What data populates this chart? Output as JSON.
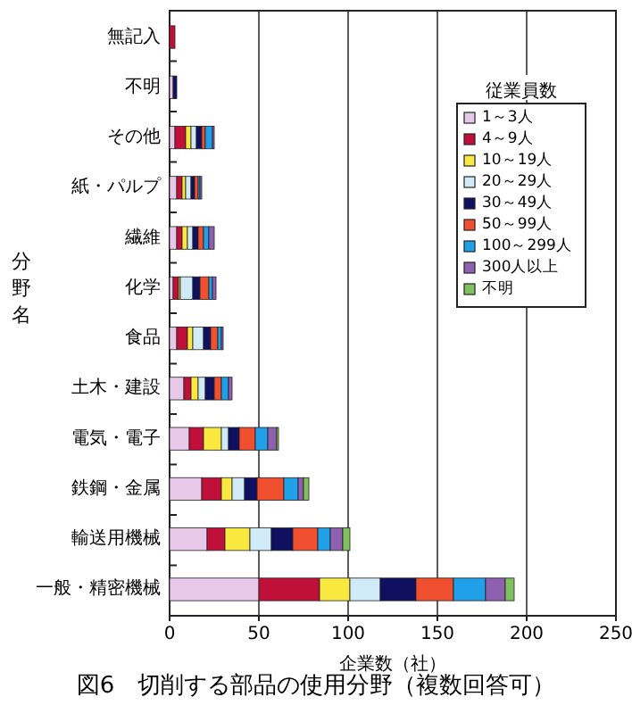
{
  "chart_data": {
    "type": "bar",
    "orientation": "horizontal",
    "stacked": true,
    "title": "図6　切削する部品の使用分野（複数回答可）",
    "xlabel": "企業数（社）",
    "ylabel": "分野名",
    "legend_title": "従業員数",
    "legend": "top right",
    "grid": "x",
    "categories": [
      "無記入",
      "不明",
      "その他",
      "紙・パルプ",
      "繊維",
      "化学",
      "食品",
      "土木・建設",
      "電気・電子",
      "鉄鋼・金属",
      "輸送用機械",
      "一般・精密機械"
    ],
    "xlim": [
      0,
      250
    ],
    "xticks": [
      0,
      50,
      100,
      150,
      200,
      250
    ],
    "series": [
      {
        "name": "1～3人",
        "color": "#e8c8e8",
        "values": [
          0,
          2,
          3,
          4,
          4,
          2,
          4,
          8,
          11,
          18,
          21,
          50
        ]
      },
      {
        "name": "4～9人",
        "color": "#c0103a",
        "values": [
          3,
          0,
          6,
          3,
          3,
          3,
          6,
          4,
          8,
          11,
          10,
          34
        ]
      },
      {
        "name": "10～19人",
        "color": "#f8e840",
        "values": [
          0,
          0,
          3,
          2,
          3,
          1,
          3,
          4,
          10,
          6,
          14,
          17
        ]
      },
      {
        "name": "20～29人",
        "color": "#d0eaf8",
        "values": [
          0,
          0,
          3,
          3,
          3,
          7,
          6,
          4,
          4,
          7,
          12,
          17
        ]
      },
      {
        "name": "30～49人",
        "color": "#101060",
        "values": [
          0,
          2,
          3,
          2,
          3,
          4,
          4,
          5,
          6,
          7,
          12,
          20
        ]
      },
      {
        "name": "50～99人",
        "color": "#f05030",
        "values": [
          0,
          0,
          2,
          2,
          3,
          5,
          4,
          4,
          9,
          15,
          14,
          21
        ]
      },
      {
        "name": "100～299人",
        "color": "#20a0e8",
        "values": [
          0,
          0,
          4,
          1,
          3,
          2,
          2,
          4,
          7,
          8,
          7,
          18
        ]
      },
      {
        "name": "300人以上",
        "color": "#9060b0",
        "values": [
          0,
          0,
          1,
          1,
          3,
          2,
          1,
          2,
          5,
          3,
          7,
          11
        ]
      },
      {
        "name": "不明",
        "color": "#80c060",
        "values": [
          0,
          0,
          0,
          0,
          0,
          0,
          0,
          0,
          1,
          3,
          4,
          5
        ]
      }
    ]
  }
}
